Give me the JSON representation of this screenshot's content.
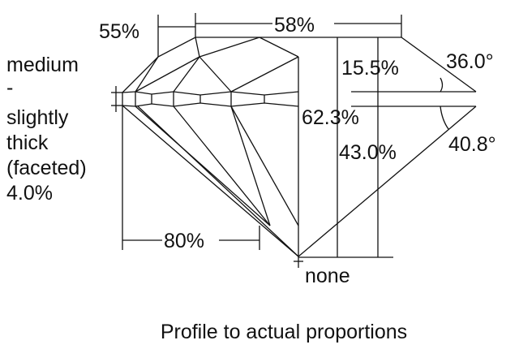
{
  "labels": {
    "crown_height_ratio": "55%",
    "table": "58%",
    "crown_height": "15.5%",
    "crown_angle": "36.0°",
    "total_depth": "62.3%",
    "pavilion_depth": "43.0%",
    "pavilion_angle": "40.8°",
    "lower_half": "80%",
    "culet": "none",
    "girdle": [
      "medium",
      "-",
      "slightly",
      "thick",
      "(faceted)",
      "4.0%"
    ]
  },
  "caption": "Profile to actual proportions"
}
